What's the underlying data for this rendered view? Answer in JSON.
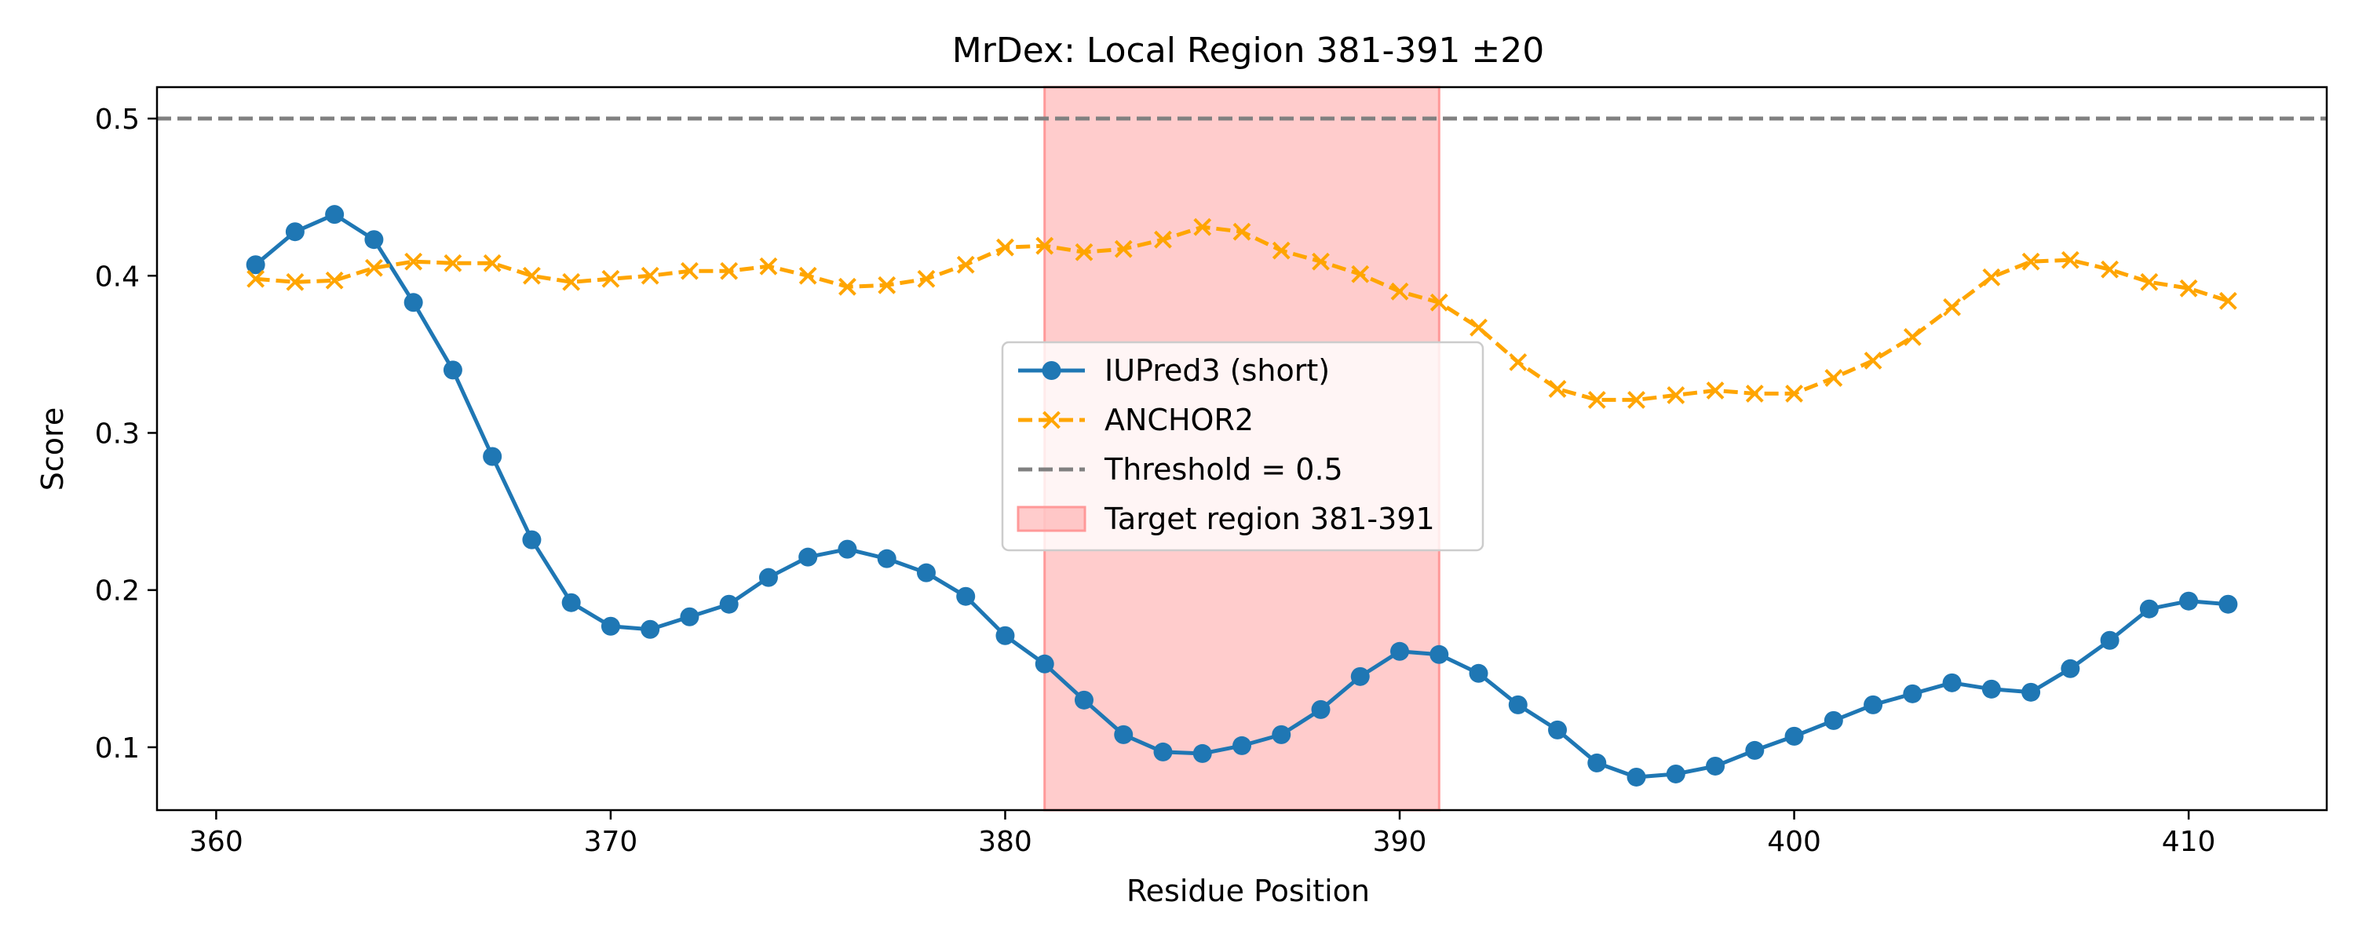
{
  "chart_data": {
    "type": "line",
    "title": "MrDex: Local Region 381-391 ±20",
    "xlabel": "Residue Position",
    "ylabel": "Score",
    "xlim": [
      358.5,
      413.5
    ],
    "ylim": [
      0.06,
      0.52
    ],
    "xticks": [
      360,
      370,
      380,
      390,
      400,
      410
    ],
    "yticks": [
      0.1,
      0.2,
      0.3,
      0.4,
      0.5
    ],
    "grid": false,
    "legend_position": "center",
    "x": [
      361,
      362,
      363,
      364,
      365,
      366,
      367,
      368,
      369,
      370,
      371,
      372,
      373,
      374,
      375,
      376,
      377,
      378,
      379,
      380,
      381,
      382,
      383,
      384,
      385,
      386,
      387,
      388,
      389,
      390,
      391,
      392,
      393,
      394,
      395,
      396,
      397,
      398,
      399,
      400,
      401,
      402,
      403,
      404,
      405,
      406,
      407,
      408,
      409,
      410,
      411
    ],
    "series": [
      {
        "name": "IUPred3 (short)",
        "color": "#1f77b4",
        "marker": "circle",
        "linestyle": "solid",
        "values": [
          0.407,
          0.428,
          0.439,
          0.423,
          0.383,
          0.34,
          0.285,
          0.232,
          0.192,
          0.177,
          0.175,
          0.183,
          0.191,
          0.208,
          0.221,
          0.226,
          0.22,
          0.211,
          0.196,
          0.171,
          0.153,
          0.13,
          0.108,
          0.097,
          0.096,
          0.101,
          0.108,
          0.124,
          0.145,
          0.161,
          0.159,
          0.147,
          0.127,
          0.111,
          0.09,
          0.081,
          0.083,
          0.088,
          0.098,
          0.107,
          0.117,
          0.127,
          0.134,
          0.141,
          0.137,
          0.135,
          0.15,
          0.168,
          0.188,
          0.193,
          0.191
        ]
      },
      {
        "name": "ANCHOR2",
        "color": "#ffa500",
        "marker": "x",
        "linestyle": "dashed",
        "values": [
          0.398,
          0.396,
          0.397,
          0.405,
          0.409,
          0.408,
          0.408,
          0.4,
          0.396,
          0.398,
          0.4,
          0.403,
          0.403,
          0.406,
          0.4,
          0.393,
          0.394,
          0.398,
          0.407,
          0.418,
          0.419,
          0.415,
          0.417,
          0.423,
          0.431,
          0.428,
          0.416,
          0.409,
          0.401,
          0.39,
          0.383,
          0.367,
          0.345,
          0.328,
          0.321,
          0.321,
          0.324,
          0.327,
          0.325,
          0.325,
          0.335,
          0.346,
          0.361,
          0.38,
          0.399,
          0.409,
          0.41,
          0.404,
          0.396,
          0.392,
          0.384
        ]
      }
    ],
    "threshold": {
      "value": 0.5,
      "label": "Threshold = 0.5",
      "color": "#808080"
    },
    "region": {
      "start": 381,
      "end": 391,
      "label": "Target region 381-391",
      "color": "#ff9999"
    }
  }
}
